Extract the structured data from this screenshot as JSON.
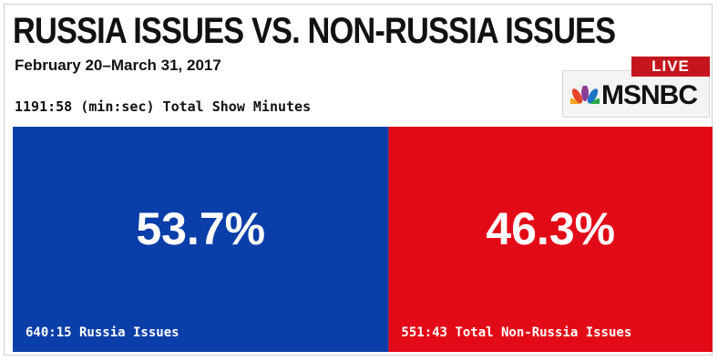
{
  "header": {
    "title": "RUSSIA ISSUES VS. NON-RUSSIA ISSUES",
    "subtitle": "February 20–March 31, 2017",
    "total_minutes": "1191:58 (min:sec) Total Show Minutes"
  },
  "branding": {
    "live_badge": "LIVE",
    "network": "MSNBC",
    "icon": "peacock-icon"
  },
  "colors": {
    "russia": "#0a3ea8",
    "non_russia": "#e30a17",
    "live_red": "#c4161c"
  },
  "chart_data": {
    "type": "bar",
    "orientation": "stacked-horizontal",
    "title": "RUSSIA ISSUES VS. NON-RUSSIA ISSUES",
    "categories": [
      "Russia Issues",
      "Total Non-Russia Issues"
    ],
    "values": [
      53.7,
      46.3
    ],
    "unit": "%",
    "percent_labels": [
      "53.7%",
      "46.3%"
    ],
    "time_labels": [
      "640:15 Russia Issues",
      "551:43 Total Non-Russia Issues"
    ],
    "time_values": [
      "640:15",
      "551:43"
    ]
  }
}
